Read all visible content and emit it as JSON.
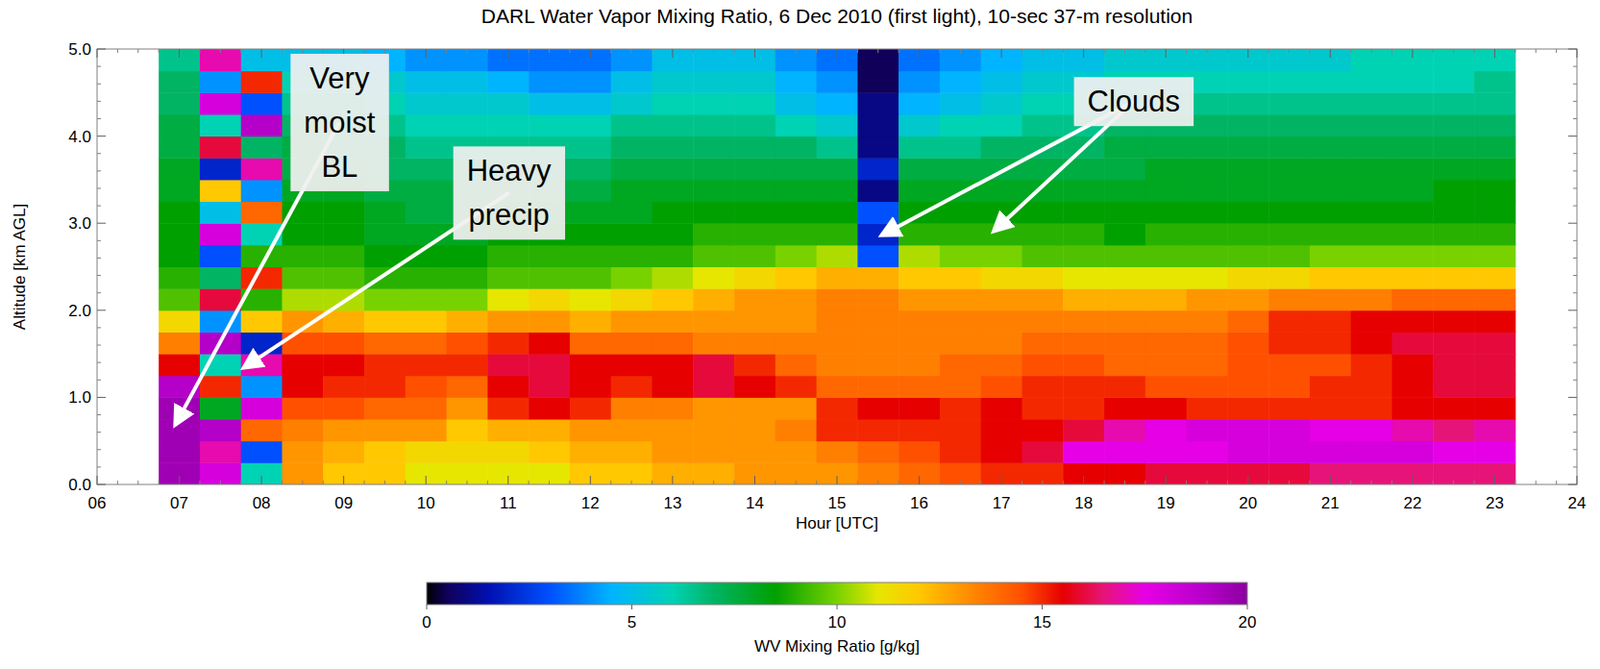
{
  "chart_data": {
    "type": "heatmap",
    "title": "DARL Water Vapor Mixing Ratio, 6 Dec 2010 (first light), 10-sec 37-m resolution",
    "x_label": "Hour [UTC]",
    "y_label": "Altitude [km AGL]",
    "xlim": [
      6,
      24
    ],
    "ylim": [
      0,
      5
    ],
    "xticks": [
      {
        "value": 6,
        "label": "06"
      },
      {
        "value": 7,
        "label": "07"
      },
      {
        "value": 8,
        "label": "08"
      },
      {
        "value": 9,
        "label": "09"
      },
      10,
      11,
      12,
      13,
      14,
      15,
      16,
      17,
      18,
      19,
      20,
      21,
      22,
      23,
      24
    ],
    "yticks": [
      {
        "value": 0,
        "label": "0.0"
      },
      {
        "value": 1,
        "label": "1.0"
      },
      {
        "value": 2,
        "label": "2.0"
      },
      {
        "value": 3,
        "label": "3.0"
      },
      {
        "value": 4,
        "label": "4.0"
      },
      {
        "value": 5,
        "label": "5.0"
      }
    ],
    "x": [
      7,
      7.5,
      8,
      8.5,
      9,
      9.5,
      10,
      10.5,
      11,
      11.5,
      12,
      12.5,
      13,
      13.5,
      14,
      14.5,
      15,
      15.5,
      16,
      16.5,
      17,
      17.5,
      18,
      18.5,
      19,
      19.5,
      20,
      20.5,
      21,
      21.5,
      22,
      22.5,
      23
    ],
    "y": [
      0.125,
      0.375,
      0.625,
      0.875,
      1.125,
      1.375,
      1.625,
      1.875,
      2.125,
      2.375,
      2.625,
      2.875,
      3.125,
      3.375,
      3.625,
      3.875,
      4.125,
      4.375,
      4.625,
      4.875
    ],
    "values": [
      [
        19.5,
        18,
        6,
        13,
        12,
        12,
        11,
        11,
        11,
        11,
        12,
        12,
        12.5,
        12.5,
        13,
        13,
        13,
        13.5,
        14,
        14.5,
        15,
        15,
        15.5,
        15.5,
        16,
        16,
        16,
        16,
        16.5,
        16.5,
        16.5,
        16.5,
        16.5
      ],
      [
        19.5,
        17,
        3,
        13,
        12.5,
        12,
        11.5,
        11.5,
        11.5,
        12,
        12.5,
        12.5,
        13,
        13,
        13,
        13,
        13.5,
        14,
        14.5,
        15,
        15.5,
        16,
        17.5,
        17.5,
        17.5,
        17.5,
        18,
        18,
        18,
        18,
        18,
        17.5,
        17.5
      ],
      [
        19.5,
        19,
        14,
        13.5,
        13,
        13,
        13,
        12,
        12.5,
        12.5,
        13,
        13,
        13,
        13,
        13,
        13.5,
        15,
        15,
        15,
        15,
        15.5,
        15.5,
        16,
        17,
        17.5,
        18,
        18,
        18,
        17.5,
        17.5,
        17,
        16.5,
        17
      ],
      [
        19.5,
        8,
        18,
        14.5,
        14.5,
        14,
        14,
        13,
        15,
        15.5,
        15,
        13.5,
        13.5,
        13,
        13,
        13,
        15,
        15.5,
        15.5,
        15,
        15.5,
        15,
        15,
        15.5,
        15.5,
        15,
        15,
        15,
        15,
        15,
        15.5,
        15.5,
        15.5
      ],
      [
        19,
        15,
        4,
        15.5,
        15,
        15,
        14.5,
        14,
        15.5,
        16,
        15.5,
        15,
        15.5,
        16,
        15.5,
        15,
        14,
        14,
        14,
        14,
        14.5,
        15,
        15,
        15,
        14.5,
        14.5,
        14.5,
        14.5,
        15,
        15,
        15.5,
        16,
        16
      ],
      [
        15.5,
        6,
        17,
        15.5,
        15.5,
        15,
        15,
        15,
        16,
        16,
        15.5,
        15.5,
        15.5,
        16,
        15,
        14,
        13.5,
        13.5,
        13.5,
        14,
        14,
        14.5,
        14.5,
        14,
        14,
        14,
        14.5,
        14.5,
        14.5,
        15,
        15.5,
        16,
        16
      ],
      [
        13.5,
        19,
        2,
        14.5,
        14.5,
        14,
        14,
        14.5,
        15,
        15.5,
        14,
        14,
        14,
        13.5,
        13.5,
        13.5,
        13.5,
        13.5,
        13.5,
        13.5,
        13.5,
        14,
        14,
        14,
        14,
        14,
        14.5,
        15,
        15,
        15.5,
        16,
        16,
        16
      ],
      [
        11.5,
        4,
        12,
        13,
        12.5,
        12,
        12,
        12.5,
        13,
        13,
        12.5,
        13,
        13,
        13,
        13,
        13,
        13.5,
        13.5,
        13.5,
        13.5,
        13.5,
        13.5,
        13.5,
        13.5,
        13.5,
        13.5,
        14,
        15,
        15,
        15.5,
        15.5,
        15.5,
        15.5
      ],
      [
        9.5,
        16,
        9,
        10.5,
        10.5,
        10,
        10,
        10,
        11,
        11.5,
        11,
        11.5,
        12,
        12.5,
        13,
        13,
        13.5,
        13.5,
        13,
        13,
        13,
        13,
        12.5,
        12.5,
        12.5,
        13,
        13,
        13.5,
        13.5,
        13.5,
        14,
        14,
        14
      ],
      [
        9,
        7,
        15,
        9.5,
        9.5,
        9,
        9,
        9,
        9.5,
        9.5,
        9.5,
        10,
        10.5,
        11,
        11.5,
        12,
        12.5,
        12.5,
        12,
        12,
        11.5,
        11.5,
        11,
        11,
        11,
        11,
        11.5,
        11.5,
        12,
        12,
        12,
        12,
        12
      ],
      [
        8.5,
        3,
        9,
        9,
        9,
        8.5,
        8.5,
        8.5,
        9,
        9,
        9,
        9,
        9,
        9.5,
        9.5,
        10,
        10.5,
        3,
        10.5,
        10,
        10,
        9.5,
        9.5,
        9.5,
        9.5,
        9.5,
        9.5,
        9.5,
        10,
        10,
        10,
        10,
        10
      ],
      [
        8.5,
        18,
        6,
        8.5,
        8.5,
        8,
        8,
        8,
        8.5,
        8.5,
        8.5,
        8.5,
        8.5,
        9,
        9,
        9,
        9,
        2,
        9,
        9,
        9,
        9,
        9,
        8.5,
        9,
        9,
        9,
        9,
        9,
        9,
        9,
        9,
        9
      ],
      [
        8.5,
        5,
        14,
        8.5,
        8.5,
        8,
        7.5,
        7.5,
        8,
        8,
        8,
        8,
        8.5,
        8.5,
        8.5,
        8.5,
        8.5,
        3,
        8.5,
        8.5,
        8.5,
        8.5,
        8.5,
        8.5,
        8.5,
        8.5,
        8.5,
        8.5,
        8.5,
        8.5,
        8.5,
        8.5,
        8.5
      ],
      [
        8,
        12,
        4,
        8,
        8,
        7.5,
        7.5,
        7.5,
        7.5,
        7.5,
        7.5,
        8,
        8,
        8,
        8,
        8,
        8,
        1,
        8,
        8,
        8,
        8,
        8,
        8,
        8,
        8,
        8,
        8,
        8,
        8,
        8,
        8.5,
        8.5
      ],
      [
        8,
        2,
        17,
        7.5,
        7.5,
        7,
        7,
        7,
        7,
        7,
        7,
        7.5,
        7.5,
        7.5,
        7.5,
        7.5,
        7.5,
        2,
        7.5,
        7.5,
        7.5,
        7.5,
        7.5,
        7.5,
        8,
        8,
        8,
        8,
        8,
        8,
        8,
        8,
        8
      ],
      [
        7.5,
        16,
        7,
        7.5,
        7,
        7,
        6.5,
        6.5,
        6.5,
        6.5,
        6.5,
        7,
        7,
        7,
        7,
        7,
        6.5,
        1,
        6.5,
        6.5,
        7,
        7,
        7,
        7.5,
        7.5,
        7.5,
        7.5,
        7.5,
        7.5,
        7.5,
        7.5,
        7.5,
        7.5
      ],
      [
        7.5,
        6,
        19,
        7,
        7,
        6.5,
        6,
        6,
        6,
        6,
        6,
        6.5,
        6.5,
        6.5,
        6.5,
        6,
        5.5,
        1,
        5.5,
        6,
        6,
        6.5,
        6.5,
        7,
        7,
        7,
        7,
        7,
        7,
        7,
        7,
        7,
        7
      ],
      [
        7,
        18,
        3,
        6.5,
        6.5,
        6,
        5.5,
        5.5,
        5.5,
        5,
        5,
        5.5,
        6,
        6,
        6,
        5,
        4.5,
        1,
        4.5,
        5,
        5.5,
        6,
        6,
        6.5,
        6.5,
        6.5,
        6.5,
        6.5,
        6.5,
        6.5,
        6.5,
        6.5,
        6.5
      ],
      [
        7,
        4,
        15,
        6,
        6,
        5.5,
        5,
        5,
        4.5,
        4,
        4,
        5,
        5.5,
        5.5,
        5.5,
        4.5,
        4,
        0.5,
        4,
        4.5,
        5,
        5.5,
        5.5,
        6,
        6,
        6,
        6,
        6,
        6,
        6,
        6,
        6,
        6.5
      ],
      [
        6.5,
        17,
        5,
        5,
        5,
        4.5,
        4,
        4,
        3.5,
        3.5,
        3.5,
        4,
        5,
        5,
        5,
        4,
        3.5,
        0.5,
        3.5,
        4,
        4.5,
        5,
        5,
        5.5,
        5.5,
        5.5,
        5.5,
        5.5,
        5.5,
        6,
        6,
        6,
        6
      ]
    ],
    "colorbar": {
      "range": [
        0,
        20
      ],
      "ticks": [
        0,
        5,
        10,
        15,
        20
      ],
      "label": "WV Mixing Ratio [g/kg]"
    },
    "annotations": [
      {
        "text": [
          "Very",
          "moist",
          "BL"
        ],
        "text_x": 8.95,
        "text_y": 4.16,
        "targets": [
          {
            "x": 6.96,
            "y": 0.7
          }
        ]
      },
      {
        "text": [
          "Heavy",
          "precip"
        ],
        "text_x": 11.01,
        "text_y": 3.35,
        "targets": [
          {
            "x": 7.8,
            "y": 1.35
          }
        ]
      },
      {
        "text": [
          "Clouds"
        ],
        "text_x": 18.61,
        "text_y": 4.4,
        "targets": [
          {
            "x": 15.56,
            "y": 2.87
          },
          {
            "x": 16.92,
            "y": 2.92
          }
        ]
      }
    ]
  }
}
